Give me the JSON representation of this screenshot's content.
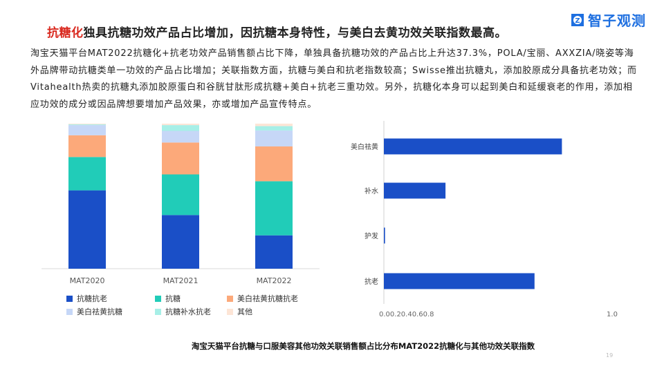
{
  "header": {
    "title_highlight": "抗糖化",
    "title_rest": "独具抗糖功效产品占比增加，因抗糖本身特性，与美白去黄功效关联指数最高。",
    "logo_text": "智子观测",
    "accent_color": "#d9281e",
    "logo_color": "#1e6fe0"
  },
  "body": {
    "paragraph": "淘宝天猫平台MAT2022抗糖化+抗老功效产品销售额占比下降，单独具备抗糖功效的产品占比上升达37.3%，POLA/宝丽、AXXZIA/晓姿等海外品牌带动抗糖类单一功效的产品占比增加；关联指数方面，抗糖与美白和抗老指数较高；Swisse推出抗糖丸，添加胶原成分具备抗老功效；而Vitahealth热卖的抗糖丸添加胶原蛋白和谷胱甘肽形成抗糖+美白+抗老三重功效。另外，抗糖化本身可以起到美白和延缓衰老的作用，添加相应功效的成分或因品牌想要增加产品效果，亦或增加产品宣传特点。"
  },
  "caption": "淘宝天猫平台抗糖与口服美容其他功效关联销售额占比分布MAT2022抗糖化与其他功效关联指数",
  "page_number": "19",
  "chart_data": [
    {
      "type": "bar",
      "stacked": true,
      "categories": [
        "MAT2020",
        "MAT2021",
        "MAT2022"
      ],
      "ylim": [
        0,
        1
      ],
      "series": [
        {
          "name": "抗糖抗老",
          "color": "#1a4fc7",
          "values": [
            0.54,
            0.37,
            0.23
          ]
        },
        {
          "name": "抗糖",
          "color": "#21ccb8",
          "values": [
            0.23,
            0.28,
            0.373
          ]
        },
        {
          "name": "美白祛黄抗糖抗老",
          "color": "#fca97a",
          "values": [
            0.15,
            0.22,
            0.24
          ]
        },
        {
          "name": "美白祛黄抗糖",
          "color": "#c6d7f7",
          "values": [
            0.07,
            0.08,
            0.11
          ]
        },
        {
          "name": "抗糖补水抗老",
          "color": "#a7efe7",
          "values": [
            0.005,
            0.04,
            0.03
          ]
        },
        {
          "name": "其他",
          "color": "#fde5d6",
          "values": [
            0.005,
            0.01,
            0.017
          ]
        }
      ],
      "grid": false,
      "legend_position": "bottom"
    },
    {
      "type": "bar",
      "orientation": "horizontal",
      "categories": [
        "美白祛黄",
        "补水",
        "护发",
        "抗老"
      ],
      "values": [
        0.78,
        0.27,
        0.005,
        0.66
      ],
      "color": "#1a4fc7",
      "xlim": [
        0,
        1.0
      ],
      "x_tick_text": "0.00.20.40.60.8",
      "x_tick_end": "1.0"
    }
  ]
}
